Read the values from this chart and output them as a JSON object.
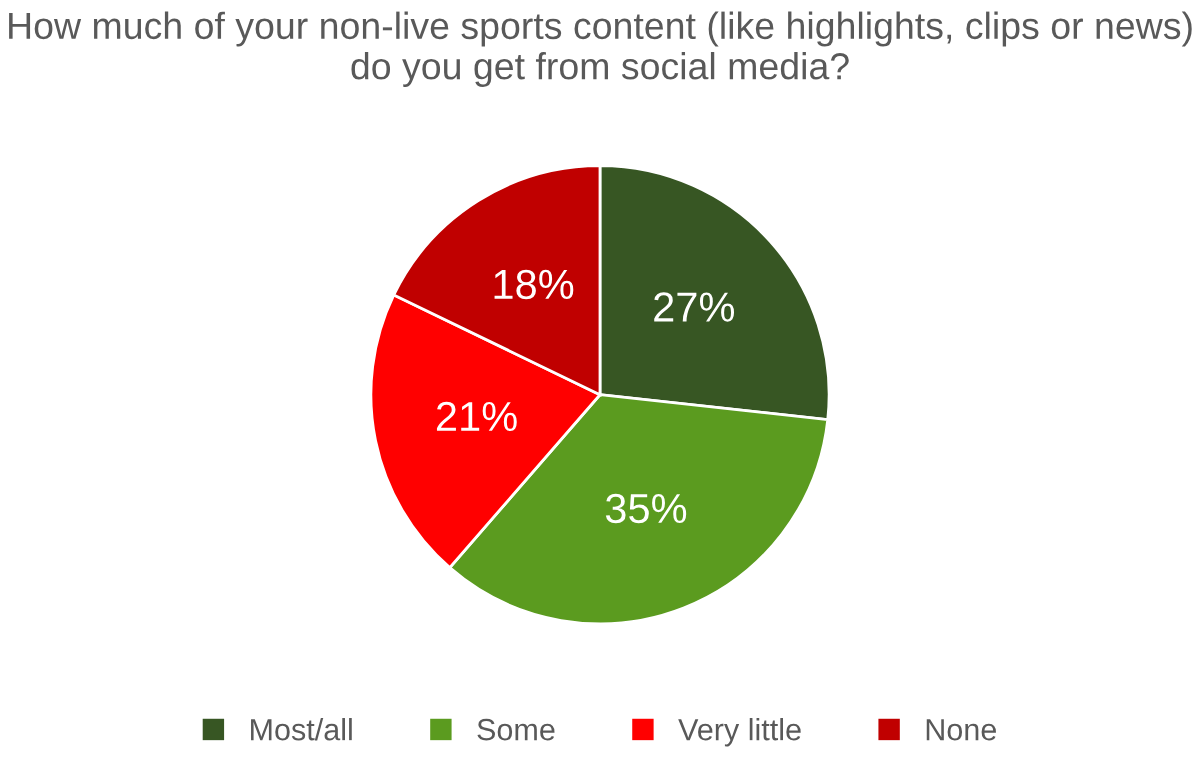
{
  "chart_data": {
    "type": "pie",
    "title": "How much of your non-live sports content (like highlights, clips or news) do you get from social media?",
    "categories": [
      "Most/all",
      "Some",
      "Very little",
      "None"
    ],
    "values": [
      27,
      35,
      21,
      18
    ],
    "colors": [
      "#375623",
      "#5b9b1f",
      "#ff0000",
      "#c00000"
    ],
    "value_labels": [
      "27%",
      "35%",
      "21%",
      "18%"
    ],
    "legend": "bottom"
  }
}
